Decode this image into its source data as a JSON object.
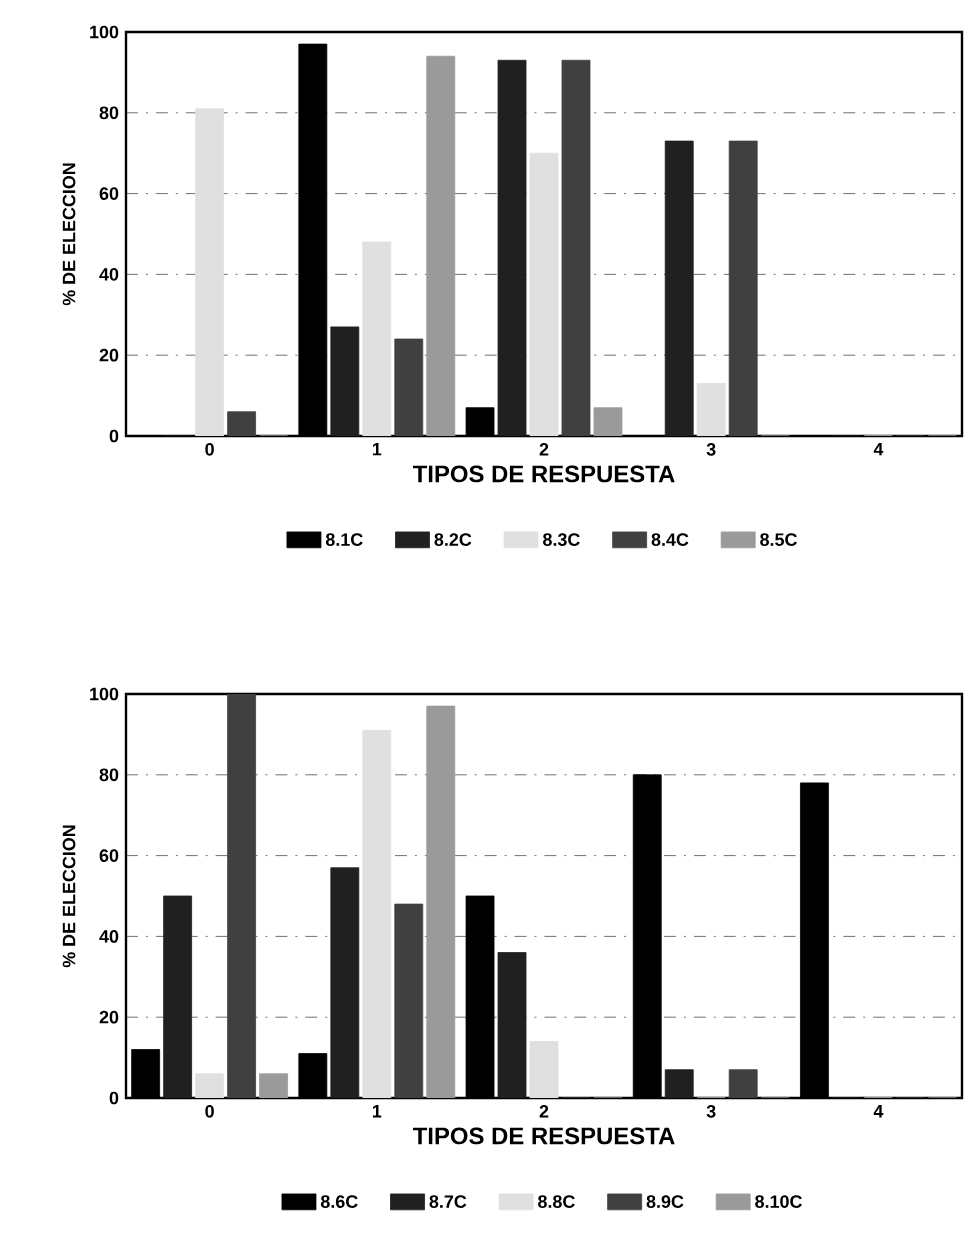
{
  "chart_data": [
    {
      "type": "bar",
      "categories": [
        "0",
        "1",
        "2",
        "3",
        "4"
      ],
      "xlabel": "TIPOS DE RESPUESTA",
      "ylabel": "% DE ELECCION",
      "ylim": [
        0,
        100
      ],
      "yticks": [
        0,
        20,
        40,
        60,
        80,
        100
      ],
      "grid": "y",
      "legend": "bottom",
      "series": [
        {
          "name": "8.1C",
          "color": "#000000",
          "values": [
            0,
            97,
            7,
            0,
            0
          ]
        },
        {
          "name": "8.2C",
          "color": "#202020",
          "values": [
            0,
            27,
            93,
            73,
            0
          ]
        },
        {
          "name": "8.3C",
          "color": "#e0e0e0",
          "values": [
            81,
            48,
            70,
            13,
            0
          ]
        },
        {
          "name": "8.4C",
          "color": "#404040",
          "values": [
            6,
            24,
            93,
            73,
            0
          ]
        },
        {
          "name": "8.5C",
          "color": "#9a9a9a",
          "values": [
            0,
            94,
            7,
            0,
            0
          ]
        }
      ]
    },
    {
      "type": "bar",
      "categories": [
        "0",
        "1",
        "2",
        "3",
        "4"
      ],
      "xlabel": "TIPOS DE RESPUESTA",
      "ylabel": "% DE ELECCION",
      "ylim": [
        0,
        100
      ],
      "yticks": [
        0,
        20,
        40,
        60,
        80,
        100
      ],
      "grid": "y",
      "legend": "bottom",
      "series": [
        {
          "name": "8.6C",
          "color": "#000000",
          "values": [
            12,
            11,
            50,
            80,
            78
          ]
        },
        {
          "name": "8.7C",
          "color": "#202020",
          "values": [
            50,
            57,
            36,
            7,
            0
          ]
        },
        {
          "name": "8.8C",
          "color": "#e0e0e0",
          "values": [
            6,
            91,
            14,
            0,
            0
          ]
        },
        {
          "name": "8.9C",
          "color": "#404040",
          "values": [
            100,
            48,
            0,
            7,
            0
          ]
        },
        {
          "name": "8.10C",
          "color": "#9a9a9a",
          "values": [
            6,
            97,
            0,
            0,
            0
          ]
        }
      ]
    }
  ]
}
